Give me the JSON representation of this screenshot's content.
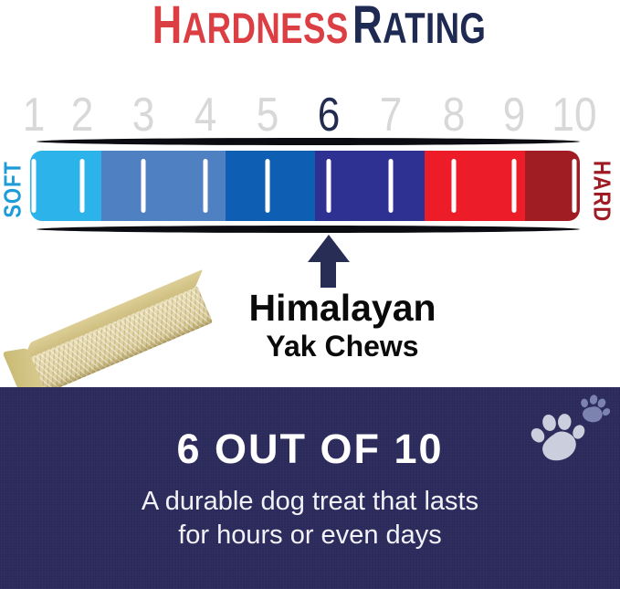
{
  "title": {
    "word1": "HARDNESS",
    "word2": "RATING"
  },
  "scale": {
    "numbers": [
      "1",
      "2",
      "3",
      "4",
      "5",
      "6",
      "7",
      "8",
      "9",
      "10"
    ],
    "highlighted": "6",
    "positions_pct": [
      0.7,
      9.5,
      20.6,
      31.9,
      43.2,
      54.3,
      65.6,
      77.0,
      88.1,
      99.0
    ],
    "segments": [
      {
        "name": "level-1-2",
        "color": "#2BB3EA",
        "width_pct": 13.0
      },
      {
        "name": "level-3-4",
        "color": "#4F81C2",
        "width_pct": 22.5
      },
      {
        "name": "level-5",
        "color": "#0E5FB4",
        "width_pct": 16.3
      },
      {
        "name": "level-6-7",
        "color": "#2E3192",
        "width_pct": 20.0
      },
      {
        "name": "level-8-9",
        "color": "#EC1C29",
        "width_pct": 18.2
      },
      {
        "name": "level-10",
        "color": "#A01D24",
        "width_pct": 10.0
      }
    ],
    "soft_label": "SOFT",
    "hard_label": "HARD",
    "pointer_value": "6",
    "pointer_pct": 54.3
  },
  "product": {
    "line1": "Himalayan",
    "line2": "Yak Chews"
  },
  "panel": {
    "rating": "6 OUT OF 10",
    "desc_line1": "A durable dog treat that lasts",
    "desc_line2": "for hours or even days"
  },
  "colors": {
    "title_red": "#DB3E43",
    "title_navy": "#1F2A52",
    "number_gray": "#D8D8D8",
    "number_active": "#222B50",
    "soft_label": "#1D9CD8",
    "hard_label": "#9E1B24",
    "pointer": "#272D55",
    "panel_bg": "#2B2A5B",
    "tick": "#FFFFFF",
    "outline": "#0B0B12",
    "paw_large": "#CBCEDC",
    "paw_small": "#7D83AF"
  }
}
